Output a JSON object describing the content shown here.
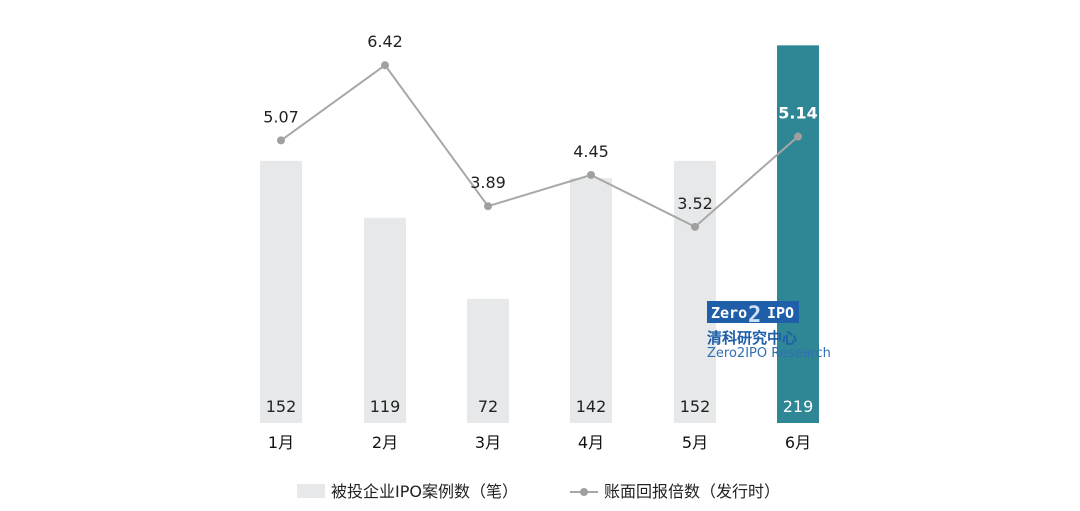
{
  "chart_data": {
    "type": "bar",
    "categories": [
      "1月",
      "2月",
      "3月",
      "4月",
      "5月",
      "6月"
    ],
    "series": [
      {
        "name": "被投企业IPO案例数（笔）",
        "type": "bar",
        "values": [
          152,
          119,
          72,
          142,
          152,
          219
        ]
      },
      {
        "name": "账面回报倍数（发行时）",
        "type": "line",
        "values": [
          5.07,
          6.42,
          3.89,
          4.45,
          3.52,
          5.14
        ]
      }
    ],
    "bar_labels": [
      "152",
      "119",
      "72",
      "142",
      "152",
      "219"
    ],
    "line_labels": [
      "5.07",
      "6.42",
      "3.89",
      "4.45",
      "3.52",
      "5.14"
    ],
    "highlight_index": 5,
    "bar_ylim": [
      0,
      225
    ],
    "line_ylim": [
      0,
      7.5
    ],
    "grid": false,
    "legend_position": "bottom",
    "title": "",
    "xlabel": "",
    "ylabel": ""
  },
  "colors": {
    "bar": "#e6e8ea",
    "bar_highlight": "#2f8795",
    "line": "#a8a8a8",
    "marker": "#a0a0a0"
  },
  "watermark": {
    "logo_left": "Zero",
    "logo_mid": "2",
    "logo_right": "IPO",
    "cn": "清科研究中心",
    "en": "Zero2IPO Research"
  }
}
